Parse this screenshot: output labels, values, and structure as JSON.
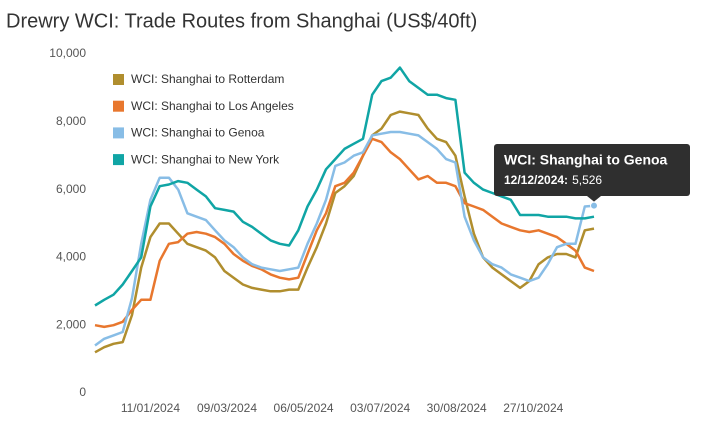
{
  "chart_data": {
    "type": "line",
    "title": "Drewry WCI: Trade Routes from Shanghai (US$/40ft)",
    "x": [
      "30/11/2023",
      "07/12/2023",
      "14/12/2023",
      "21/12/2023",
      "28/12/2023",
      "04/01/2024",
      "11/01/2024",
      "18/01/2024",
      "25/01/2024",
      "01/02/2024",
      "08/02/2024",
      "15/02/2024",
      "22/02/2024",
      "29/02/2024",
      "07/03/2024",
      "14/03/2024",
      "21/03/2024",
      "28/03/2024",
      "04/04/2024",
      "11/04/2024",
      "18/04/2024",
      "25/04/2024",
      "02/05/2024",
      "09/05/2024",
      "16/05/2024",
      "23/05/2024",
      "30/05/2024",
      "06/06/2024",
      "13/06/2024",
      "20/06/2024",
      "27/06/2024",
      "04/07/2024",
      "11/07/2024",
      "18/07/2024",
      "25/07/2024",
      "01/08/2024",
      "08/08/2024",
      "15/08/2024",
      "22/08/2024",
      "29/08/2024",
      "05/09/2024",
      "12/09/2024",
      "19/09/2024",
      "26/09/2024",
      "03/10/2024",
      "10/10/2024",
      "17/10/2024",
      "24/10/2024",
      "31/10/2024",
      "07/11/2024",
      "14/11/2024",
      "21/11/2024",
      "28/11/2024",
      "05/12/2024",
      "12/12/2024"
    ],
    "series": [
      {
        "name": "WCI: Shanghai to Rotterdam",
        "color": "#b08e2e",
        "values": [
          1200,
          1350,
          1450,
          1500,
          2300,
          3700,
          4600,
          5000,
          5000,
          4700,
          4400,
          4300,
          4200,
          4000,
          3600,
          3400,
          3200,
          3100,
          3050,
          3000,
          3000,
          3050,
          3050,
          3700,
          4300,
          5000,
          5900,
          6100,
          6400,
          7000,
          7600,
          7800,
          8200,
          8300,
          8250,
          8200,
          7800,
          7500,
          7400,
          7000,
          5800,
          4700,
          4000,
          3700,
          3500,
          3300,
          3100,
          3300,
          3800,
          4000,
          4100,
          4100,
          4000,
          4800,
          4850
        ]
      },
      {
        "name": "WCI: Shanghai to Los Angeles",
        "color": "#e8772e",
        "values": [
          2000,
          1950,
          2000,
          2100,
          2450,
          2750,
          2750,
          3900,
          4400,
          4450,
          4700,
          4750,
          4700,
          4600,
          4400,
          4100,
          3900,
          3750,
          3650,
          3500,
          3400,
          3350,
          3400,
          4100,
          4800,
          5300,
          6100,
          6200,
          6500,
          7000,
          7500,
          7400,
          7100,
          6900,
          6600,
          6300,
          6400,
          6200,
          6200,
          6100,
          5600,
          5500,
          5400,
          5200,
          5000,
          4900,
          4800,
          4750,
          4800,
          4700,
          4600,
          4400,
          4200,
          3700,
          3600
        ]
      },
      {
        "name": "WCI: Shanghai to Genoa",
        "color": "#88bde6",
        "values": [
          1400,
          1600,
          1700,
          1800,
          2800,
          4400,
          5700,
          6350,
          6350,
          6000,
          5300,
          5200,
          5100,
          4800,
          4500,
          4300,
          4000,
          3800,
          3700,
          3650,
          3600,
          3650,
          3700,
          4400,
          5000,
          5700,
          6700,
          6800,
          7000,
          7100,
          7600,
          7650,
          7700,
          7700,
          7650,
          7600,
          7400,
          7200,
          6900,
          6800,
          5200,
          4500,
          4000,
          3800,
          3700,
          3500,
          3400,
          3300,
          3400,
          3800,
          4300,
          4400,
          4400,
          5500,
          5526
        ]
      },
      {
        "name": "WCI: Shanghai to New York",
        "color": "#10a5a5",
        "values": [
          2580,
          2750,
          2900,
          3200,
          3600,
          4000,
          5500,
          6100,
          6150,
          6250,
          6200,
          6000,
          5800,
          5450,
          5400,
          5350,
          5050,
          4900,
          4700,
          4500,
          4400,
          4350,
          4800,
          5500,
          6000,
          6600,
          6900,
          7200,
          7350,
          7500,
          8800,
          9200,
          9300,
          9600,
          9200,
          9000,
          8800,
          8800,
          8700,
          8650,
          6500,
          6200,
          6000,
          5900,
          5800,
          5700,
          5250,
          5250,
          5250,
          5200,
          5200,
          5200,
          5150,
          5150,
          5200
        ]
      }
    ],
    "xlim": [
      "30/11/2023",
      "12/12/2024"
    ],
    "xticks": [
      "11/01/2024",
      "09/03/2024",
      "06/05/2024",
      "03/07/2024",
      "30/08/2024",
      "27/10/2024"
    ],
    "ylim": [
      0,
      10000
    ],
    "yticks": [
      0,
      {
        "value": 2000,
        "label": "2,000"
      },
      {
        "value": 4000,
        "label": "4,000"
      },
      {
        "value": 6000,
        "label": "6,000"
      },
      {
        "value": 8000,
        "label": "8,000"
      },
      {
        "value": 10000,
        "label": "10,000"
      }
    ],
    "grid": false,
    "legend": "top-left",
    "tooltip": {
      "title": "WCI: Shanghai to Genoa",
      "date": "12/12/2024:",
      "value": 5526,
      "value_label": "5,526"
    }
  }
}
